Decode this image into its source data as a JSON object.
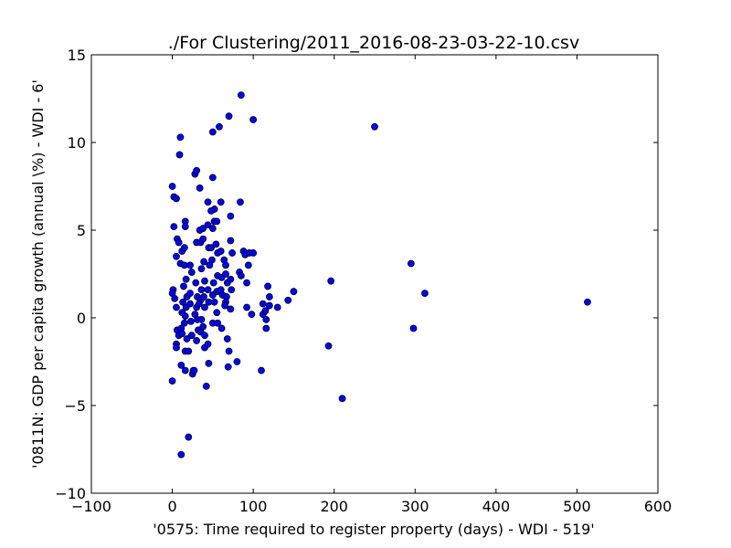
{
  "chart_data": {
    "type": "scatter",
    "title": "./For Clustering/2011_2016-08-23-03-22-10.csv",
    "xlabel": "'0575: Time required to register property  (days) - WDI - 519'",
    "ylabel": "'0811N: GDP per capita growth  (annual \\%) - WDI - 6'",
    "xlim": [
      -100,
      600
    ],
    "ylim": [
      -10,
      15
    ],
    "xticks": [
      -100,
      0,
      100,
      200,
      300,
      400,
      500,
      600
    ],
    "yticks": [
      -10,
      -5,
      0,
      5,
      10,
      15
    ],
    "xtick_labels": [
      "−100",
      "0",
      "100",
      "200",
      "300",
      "400",
      "500",
      "600"
    ],
    "ytick_labels": [
      "−10",
      "−5",
      "0",
      "5",
      "10",
      "15"
    ],
    "grid": false,
    "marker_color": "#0000ff",
    "marker_edge": "#000000",
    "points": [
      [
        0,
        7.5
      ],
      [
        2,
        6.9
      ],
      [
        5,
        6.8
      ],
      [
        2,
        5.2
      ],
      [
        6,
        4.5
      ],
      [
        8,
        4.3
      ],
      [
        5,
        3.5
      ],
      [
        1,
        1.6
      ],
      [
        0,
        1.4
      ],
      [
        3,
        1.1
      ],
      [
        5,
        0.6
      ],
      [
        6,
        -0.7
      ],
      [
        8,
        -1.0
      ],
      [
        5,
        -1.5
      ],
      [
        5,
        -1.7
      ],
      [
        0,
        -3.6
      ],
      [
        10,
        10.3
      ],
      [
        9,
        9.3
      ],
      [
        10,
        3.1
      ],
      [
        12,
        3.8
      ],
      [
        14,
        1.8
      ],
      [
        13,
        0.9
      ],
      [
        12,
        0.3
      ],
      [
        11,
        -0.6
      ],
      [
        12,
        -0.9
      ],
      [
        11,
        -2.7
      ],
      [
        11,
        -7.8
      ],
      [
        16,
        5.5
      ],
      [
        16,
        5.2
      ],
      [
        15,
        4.0
      ],
      [
        15,
        3.0
      ],
      [
        17,
        2.2
      ],
      [
        18,
        1.2
      ],
      [
        17,
        0.6
      ],
      [
        16,
        0.1
      ],
      [
        15,
        -0.3
      ],
      [
        18,
        -1.2
      ],
      [
        16,
        -1.9
      ],
      [
        20,
        -1.9
      ],
      [
        16,
        -3.0
      ],
      [
        20,
        -6.8
      ],
      [
        22,
        3.0
      ],
      [
        24,
        2.6
      ],
      [
        22,
        1.4
      ],
      [
        22,
        0.8
      ],
      [
        23,
        -0.2
      ],
      [
        24,
        -1.0
      ],
      [
        26,
        -3.0
      ],
      [
        25,
        -3.2
      ],
      [
        27,
        -3.0
      ],
      [
        28,
        8.2
      ],
      [
        30,
        8.4
      ],
      [
        30,
        4.3
      ],
      [
        29,
        2.0
      ],
      [
        31,
        1.2
      ],
      [
        30,
        0.6
      ],
      [
        28,
        0.2
      ],
      [
        31,
        -0.1
      ],
      [
        32,
        -0.7
      ],
      [
        30,
        -1.3
      ],
      [
        34,
        7.4
      ],
      [
        34,
        5.0
      ],
      [
        35,
        4.3
      ],
      [
        36,
        2.8
      ],
      [
        36,
        1.6
      ],
      [
        35,
        1.0
      ],
      [
        33,
        0.8
      ],
      [
        36,
        -0.1
      ],
      [
        35,
        -0.8
      ],
      [
        38,
        5.1
      ],
      [
        38,
        4.5
      ],
      [
        39,
        3.2
      ],
      [
        40,
        2.1
      ],
      [
        39,
        1.2
      ],
      [
        40,
        0.6
      ],
      [
        38,
        -0.5
      ],
      [
        40,
        -1.0
      ],
      [
        40,
        -1.7
      ],
      [
        42,
        -3.9
      ],
      [
        44,
        6.6
      ],
      [
        44,
        5.3
      ],
      [
        45,
        4.0
      ],
      [
        46,
        3.0
      ],
      [
        44,
        1.6
      ],
      [
        45,
        0.9
      ],
      [
        44,
        -1.5
      ],
      [
        45,
        -2.6
      ],
      [
        50,
        10.6
      ],
      [
        50,
        8.0
      ],
      [
        52,
        6.2
      ],
      [
        48,
        6.1
      ],
      [
        52,
        5.5
      ],
      [
        50,
        5.1
      ],
      [
        48,
        4.0
      ],
      [
        49,
        3.3
      ],
      [
        51,
        2.0
      ],
      [
        50,
        1.3
      ],
      [
        52,
        0.9
      ],
      [
        50,
        -0.3
      ],
      [
        55,
        5.5
      ],
      [
        54,
        4.2
      ],
      [
        56,
        3.7
      ],
      [
        56,
        2.4
      ],
      [
        55,
        1.5
      ],
      [
        55,
        0.3
      ],
      [
        56,
        -0.3
      ],
      [
        58,
        10.9
      ],
      [
        60,
        6.6
      ],
      [
        60,
        3.8
      ],
      [
        61,
        2.3
      ],
      [
        60,
        1.6
      ],
      [
        62,
        1.3
      ],
      [
        61,
        -0.6
      ],
      [
        64,
        3.3
      ],
      [
        66,
        3.0
      ],
      [
        66,
        2.5
      ],
      [
        68,
        2.0
      ],
      [
        67,
        1.2
      ],
      [
        66,
        0.9
      ],
      [
        65,
        0.7
      ],
      [
        68,
        -1.2
      ],
      [
        70,
        -1.9
      ],
      [
        69,
        -2.8
      ],
      [
        70,
        11.5
      ],
      [
        72,
        5.8
      ],
      [
        72,
        4.4
      ],
      [
        74,
        3.7
      ],
      [
        72,
        2.2
      ],
      [
        73,
        1.6
      ],
      [
        72,
        0.5
      ],
      [
        85,
        12.7
      ],
      [
        84,
        6.6
      ],
      [
        83,
        2.6
      ],
      [
        85,
        2.4
      ],
      [
        80,
        -2.5
      ],
      [
        88,
        3.8
      ],
      [
        90,
        3.6
      ],
      [
        92,
        2.0
      ],
      [
        94,
        3.0
      ],
      [
        95,
        3.7
      ],
      [
        92,
        0.6
      ],
      [
        100,
        11.3
      ],
      [
        100,
        3.7
      ],
      [
        98,
        0.2
      ],
      [
        110,
        -3.0
      ],
      [
        112,
        0.8
      ],
      [
        112,
        0.2
      ],
      [
        115,
        0.4
      ],
      [
        116,
        -0.1
      ],
      [
        116,
        -0.6
      ],
      [
        118,
        1.8
      ],
      [
        120,
        1.2
      ],
      [
        120,
        0.7
      ],
      [
        130,
        0.6
      ],
      [
        143,
        1.0
      ],
      [
        150,
        1.5
      ],
      [
        193,
        -1.6
      ],
      [
        196,
        2.1
      ],
      [
        210,
        -4.6
      ],
      [
        250,
        10.9
      ],
      [
        295,
        3.1
      ],
      [
        298,
        -0.6
      ],
      [
        312,
        1.4
      ],
      [
        513,
        0.9
      ]
    ]
  }
}
